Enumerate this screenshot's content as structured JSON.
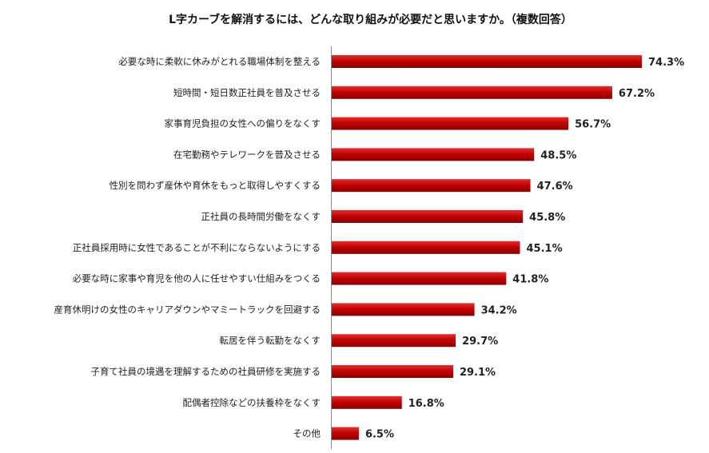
{
  "chart_data": {
    "type": "bar",
    "orientation": "horizontal",
    "title": "L字カーブを解消するには、どんな取り組みが必要だと思いますか。（複数回答）",
    "categories": [
      "必要な時に柔軟に休みがとれる職場体制を整える",
      "短時間・短日数正社員を普及させる",
      "家事育児負担の女性への偏りをなくす",
      "在宅勤務やテレワークを普及させる",
      "性別を問わず産休や育休をもっと取得しやすくする",
      "正社員の長時間労働をなくす",
      "正社員採用時に女性であることが不利にならないようにする",
      "必要な時に家事や育児を他の人に任せやすい仕組みをつくる",
      "産育休明けの女性のキャリアダウンやマミートラックを回避する",
      "転居を伴う転勤をなくす",
      "子育て社員の境遇を理解するための社員研修を実施する",
      "配偶者控除などの扶養枠をなくす",
      "その他"
    ],
    "values": [
      74.3,
      67.2,
      56.7,
      48.5,
      47.6,
      45.8,
      45.1,
      41.8,
      34.2,
      29.7,
      29.1,
      16.8,
      6.5
    ],
    "value_labels": [
      "74.3%",
      "67.2%",
      "56.7%",
      "48.5%",
      "47.6%",
      "45.8%",
      "45.1%",
      "41.8%",
      "34.2%",
      "29.7%",
      "29.1%",
      "16.8%",
      "6.5%"
    ],
    "unit": "%",
    "xlim": [
      0,
      100
    ],
    "grid": false,
    "legend": "none",
    "bar_color": "#c00000"
  }
}
